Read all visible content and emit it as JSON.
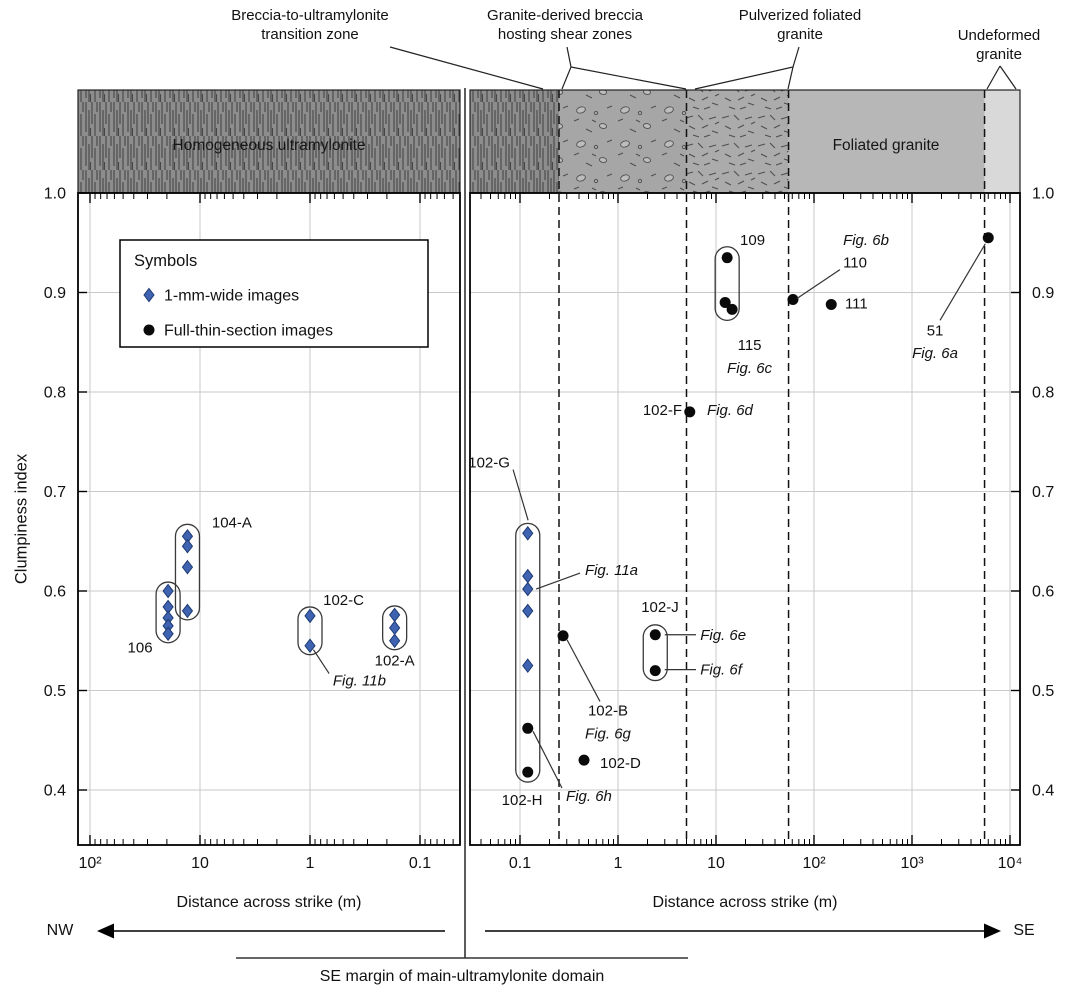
{
  "figure": {
    "zone_labels": [
      {
        "text": "Breccia-to-ultramylonite\ntransition zone"
      },
      {
        "text": "Granite-derived breccia\nhosting shear zones"
      },
      {
        "text": "Pulverized foliated\ngranite"
      },
      {
        "text": "Undeformed\ngranite"
      }
    ],
    "strip_labels": {
      "left": "Homogeneous ultramylonite",
      "right": "Foliated granite"
    },
    "legend": {
      "title": "Symbols",
      "items": [
        {
          "marker": "diamond",
          "label": "1-mm-wide images"
        },
        {
          "marker": "circle",
          "label": "Full-thin-section images"
        }
      ]
    },
    "directions": {
      "left": "NW",
      "right": "SE"
    },
    "margin_note": "SE margin of main-ultramylonite domain"
  },
  "colors": {
    "diamond_fill": "#3f63b0",
    "diamond_stroke": "#1e3a75",
    "circle_fill": "#0a0a0a",
    "grid": "#c9c9c9",
    "axis": "#000000",
    "strip_vlines_bg": "#8d8d8d",
    "strip_vlines_line": "#474747",
    "strip_breccia_bg": "#a6a6a6",
    "strip_pulverized_bg": "#ababab",
    "strip_mark": "#4f4f4f",
    "strip_foliated": "#b7b7b7",
    "strip_undeformed": "#d9d9d9"
  },
  "chart_data": {
    "type": "scatter",
    "ylabel": "Clumpiness index",
    "ylim": [
      0.345,
      1.0
    ],
    "yticks": [
      {
        "v": 1.0,
        "label": "1.0"
      },
      {
        "v": 0.9,
        "label": "0.9"
      },
      {
        "v": 0.8,
        "label": "0.8"
      },
      {
        "v": 0.7,
        "label": "0.7"
      },
      {
        "v": 0.6,
        "label": "0.6"
      },
      {
        "v": 0.5,
        "label": "0.5"
      },
      {
        "v": 0.4,
        "label": "0.4"
      }
    ],
    "panels": [
      {
        "xlabel": "Distance across strike (m)",
        "direction": "NW",
        "scale": "log-reversed",
        "xlim": [
          128,
          0.043
        ],
        "xticks": [
          {
            "v": 100,
            "label": "10²"
          },
          {
            "v": 10,
            "label": "10"
          },
          {
            "v": 1,
            "label": "1"
          },
          {
            "v": 0.1,
            "label": "0.1"
          }
        ]
      },
      {
        "xlabel": "Distance across strike (m)",
        "direction": "SE",
        "scale": "log",
        "xlim": [
          0.031,
          12600
        ],
        "xticks": [
          {
            "v": 0.1,
            "label": "0.1"
          },
          {
            "v": 1,
            "label": "1"
          },
          {
            "v": 10,
            "label": "10"
          },
          {
            "v": 100,
            "label": "10²"
          },
          {
            "v": 1000,
            "label": "10³"
          },
          {
            "v": 10000,
            "label": "10⁴"
          }
        ]
      }
    ],
    "zones": {
      "left_panel": {
        "pattern": "vlines",
        "label": "Homogeneous ultramylonite"
      },
      "right_panel": [
        {
          "from": 0.031,
          "to": 0.25,
          "pattern": "vlines"
        },
        {
          "from": 0.25,
          "to": 5,
          "pattern": "breccia"
        },
        {
          "from": 5,
          "to": 55,
          "pattern": "pulverized"
        },
        {
          "from": 55,
          "to": 5500,
          "pattern": "plain",
          "label": "Foliated granite"
        },
        {
          "from": 5500,
          "to": 12600,
          "pattern": "plain-light"
        }
      ],
      "boundaries": [
        0.25,
        5,
        55,
        5500
      ]
    },
    "points": [
      {
        "panel": 0,
        "sample": "106",
        "marker": "diamond",
        "x": 19.5,
        "y": 0.6
      },
      {
        "panel": 0,
        "sample": "106",
        "marker": "diamond",
        "x": 19.5,
        "y": 0.584
      },
      {
        "panel": 0,
        "sample": "106",
        "marker": "diamond",
        "x": 19.5,
        "y": 0.573
      },
      {
        "panel": 0,
        "sample": "106",
        "marker": "diamond",
        "x": 19.5,
        "y": 0.565
      },
      {
        "panel": 0,
        "sample": "106",
        "marker": "diamond",
        "x": 19.5,
        "y": 0.557
      },
      {
        "panel": 0,
        "sample": "104-A",
        "marker": "diamond",
        "x": 13,
        "y": 0.655
      },
      {
        "panel": 0,
        "sample": "104-A",
        "marker": "diamond",
        "x": 13,
        "y": 0.645
      },
      {
        "panel": 0,
        "sample": "104-A",
        "marker": "diamond",
        "x": 13,
        "y": 0.624
      },
      {
        "panel": 0,
        "sample": "104-A",
        "marker": "diamond",
        "x": 13,
        "y": 0.58
      },
      {
        "panel": 0,
        "sample": "102-C",
        "marker": "diamond",
        "x": 1.0,
        "y": 0.575
      },
      {
        "panel": 0,
        "sample": "102-C",
        "marker": "diamond",
        "x": 1.0,
        "y": 0.545
      },
      {
        "panel": 0,
        "sample": "102-A",
        "marker": "diamond",
        "x": 0.17,
        "y": 0.576
      },
      {
        "panel": 0,
        "sample": "102-A",
        "marker": "diamond",
        "x": 0.17,
        "y": 0.563
      },
      {
        "panel": 0,
        "sample": "102-A",
        "marker": "diamond",
        "x": 0.17,
        "y": 0.55
      },
      {
        "panel": 1,
        "sample": "102-G",
        "marker": "diamond",
        "x": 0.12,
        "y": 0.658
      },
      {
        "panel": 1,
        "sample": "102-G",
        "marker": "diamond",
        "x": 0.12,
        "y": 0.615
      },
      {
        "panel": 1,
        "sample": "102-G",
        "marker": "diamond",
        "x": 0.12,
        "y": 0.602
      },
      {
        "panel": 1,
        "sample": "102-G",
        "marker": "diamond",
        "x": 0.12,
        "y": 0.58
      },
      {
        "panel": 1,
        "sample": "102-G",
        "marker": "diamond",
        "x": 0.12,
        "y": 0.525
      },
      {
        "panel": 1,
        "sample": "102-H",
        "marker": "circle",
        "x": 0.12,
        "y": 0.462
      },
      {
        "panel": 1,
        "sample": "102-H",
        "marker": "circle",
        "x": 0.12,
        "y": 0.418
      },
      {
        "panel": 1,
        "sample": "102-B",
        "marker": "circle",
        "x": 0.275,
        "y": 0.555
      },
      {
        "panel": 1,
        "sample": "102-D",
        "marker": "circle",
        "x": 0.45,
        "y": 0.43
      },
      {
        "panel": 1,
        "sample": "102-J",
        "marker": "circle",
        "x": 2.4,
        "y": 0.556
      },
      {
        "panel": 1,
        "sample": "102-J",
        "marker": "circle",
        "x": 2.4,
        "y": 0.52
      },
      {
        "panel": 1,
        "sample": "102-F",
        "marker": "circle",
        "x": 5.4,
        "y": 0.78
      },
      {
        "panel": 1,
        "sample": "109",
        "marker": "circle",
        "x": 13,
        "y": 0.935
      },
      {
        "panel": 1,
        "sample": "115",
        "marker": "circle",
        "x": 12.4,
        "y": 0.89
      },
      {
        "panel": 1,
        "sample": "115",
        "marker": "circle",
        "x": 14.6,
        "y": 0.883
      },
      {
        "panel": 1,
        "sample": "110",
        "marker": "circle",
        "x": 61,
        "y": 0.893
      },
      {
        "panel": 1,
        "sample": "111",
        "marker": "circle",
        "x": 150,
        "y": 0.888
      },
      {
        "panel": 1,
        "sample": "51",
        "marker": "circle",
        "x": 6000,
        "y": 0.955
      }
    ],
    "groups": [
      {
        "panel": 0,
        "x": 19.5,
        "top": 0.609,
        "bottom": 0.548
      },
      {
        "panel": 0,
        "x": 13,
        "top": 0.667,
        "bottom": 0.571
      },
      {
        "panel": 0,
        "x": 1.0,
        "top": 0.584,
        "bottom": 0.536
      },
      {
        "panel": 0,
        "x": 0.17,
        "top": 0.585,
        "bottom": 0.541
      },
      {
        "panel": 1,
        "x": 0.12,
        "top": 0.668,
        "bottom": 0.408
      },
      {
        "panel": 1,
        "x": 13,
        "top": 0.946,
        "bottom": 0.872
      },
      {
        "panel": 1,
        "x": 2.4,
        "top": 0.566,
        "bottom": 0.51
      }
    ],
    "annotations": [
      {
        "panel": 0,
        "text": "106",
        "x": 27,
        "y": 0.543,
        "anchor": "end"
      },
      {
        "panel": 0,
        "text": "104-A",
        "x": 7.8,
        "y": 0.669,
        "anchor": "start"
      },
      {
        "panel": 0,
        "text": "102-C",
        "x": 0.76,
        "y": 0.591,
        "anchor": "start"
      },
      {
        "panel": 0,
        "text": "Fig. 11b",
        "italic": true,
        "x": 0.62,
        "y": 0.51,
        "anchor": "start",
        "leader": [
          [
            0.67,
            0.517
          ],
          [
            0.93,
            0.541
          ]
        ]
      },
      {
        "panel": 0,
        "text": "102-A",
        "x": 0.17,
        "y": 0.53,
        "anchor": "middle"
      },
      {
        "panel": 1,
        "text": "102-G",
        "x": 0.079,
        "y": 0.729,
        "anchor": "end",
        "leader": [
          [
            0.085,
            0.722
          ],
          [
            0.121,
            0.671
          ]
        ]
      },
      {
        "panel": 1,
        "text": "Fig. 11a",
        "italic": true,
        "x": 0.46,
        "y": 0.621,
        "anchor": "start",
        "leader": [
          [
            0.41,
            0.618
          ],
          [
            0.146,
            0.602
          ]
        ]
      },
      {
        "panel": 1,
        "text": "102-H",
        "x": 0.105,
        "y": 0.39,
        "anchor": "middle"
      },
      {
        "panel": 1,
        "text": "Fig. 6h",
        "italic": true,
        "x": 0.295,
        "y": 0.394,
        "anchor": "start",
        "leader": [
          [
            0.268,
            0.402
          ],
          [
            0.136,
            0.459
          ]
        ]
      },
      {
        "panel": 1,
        "text": "102-B",
        "x": 0.79,
        "y": 0.48,
        "anchor": "middle",
        "leader": [
          [
            0.655,
            0.489
          ],
          [
            0.302,
            0.551
          ]
        ]
      },
      {
        "panel": 1,
        "text": "Fig. 6g",
        "italic": true,
        "x": 0.79,
        "y": 0.457,
        "anchor": "middle"
      },
      {
        "panel": 1,
        "text": "102-D",
        "x": 0.655,
        "y": 0.427,
        "anchor": "start"
      },
      {
        "panel": 1,
        "text": "102-J",
        "x": 2.68,
        "y": 0.584,
        "anchor": "middle"
      },
      {
        "panel": 1,
        "text": "Fig. 6e",
        "italic": true,
        "x": 6.9,
        "y": 0.556,
        "anchor": "start",
        "leader": [
          [
            6.25,
            0.556
          ],
          [
            3.0,
            0.556
          ]
        ]
      },
      {
        "panel": 1,
        "text": "Fig. 6f",
        "italic": true,
        "x": 6.9,
        "y": 0.521,
        "anchor": "start",
        "leader": [
          [
            6.25,
            0.521
          ],
          [
            3.0,
            0.521
          ]
        ]
      },
      {
        "panel": 1,
        "text": "102-F",
        "x": 4.5,
        "y": 0.782,
        "anchor": "end"
      },
      {
        "panel": 1,
        "text": "Fig. 6d",
        "italic": true,
        "x": 8.1,
        "y": 0.782,
        "anchor": "start"
      },
      {
        "panel": 1,
        "text": "109",
        "x": 17.6,
        "y": 0.953,
        "anchor": "start"
      },
      {
        "panel": 1,
        "text": "115",
        "x": 22,
        "y": 0.847,
        "anchor": "middle"
      },
      {
        "panel": 1,
        "text": "Fig. 6c",
        "italic": true,
        "x": 22,
        "y": 0.824,
        "anchor": "middle"
      },
      {
        "panel": 1,
        "text": "Fig. 6b",
        "italic": true,
        "x": 198,
        "y": 0.953,
        "anchor": "start"
      },
      {
        "panel": 1,
        "text": "110",
        "x": 198,
        "y": 0.93,
        "anchor": "start",
        "leader": [
          [
            184,
            0.923
          ],
          [
            67,
            0.894
          ]
        ]
      },
      {
        "panel": 1,
        "text": "111",
        "x": 207,
        "y": 0.889,
        "anchor": "start"
      },
      {
        "panel": 1,
        "text": "51",
        "x": 1718,
        "y": 0.862,
        "anchor": "middle",
        "leader": [
          [
            1932,
            0.872
          ],
          [
            5600,
            0.949
          ]
        ]
      },
      {
        "panel": 1,
        "text": "Fig. 6a",
        "italic": true,
        "x": 1718,
        "y": 0.839,
        "anchor": "middle"
      }
    ]
  }
}
